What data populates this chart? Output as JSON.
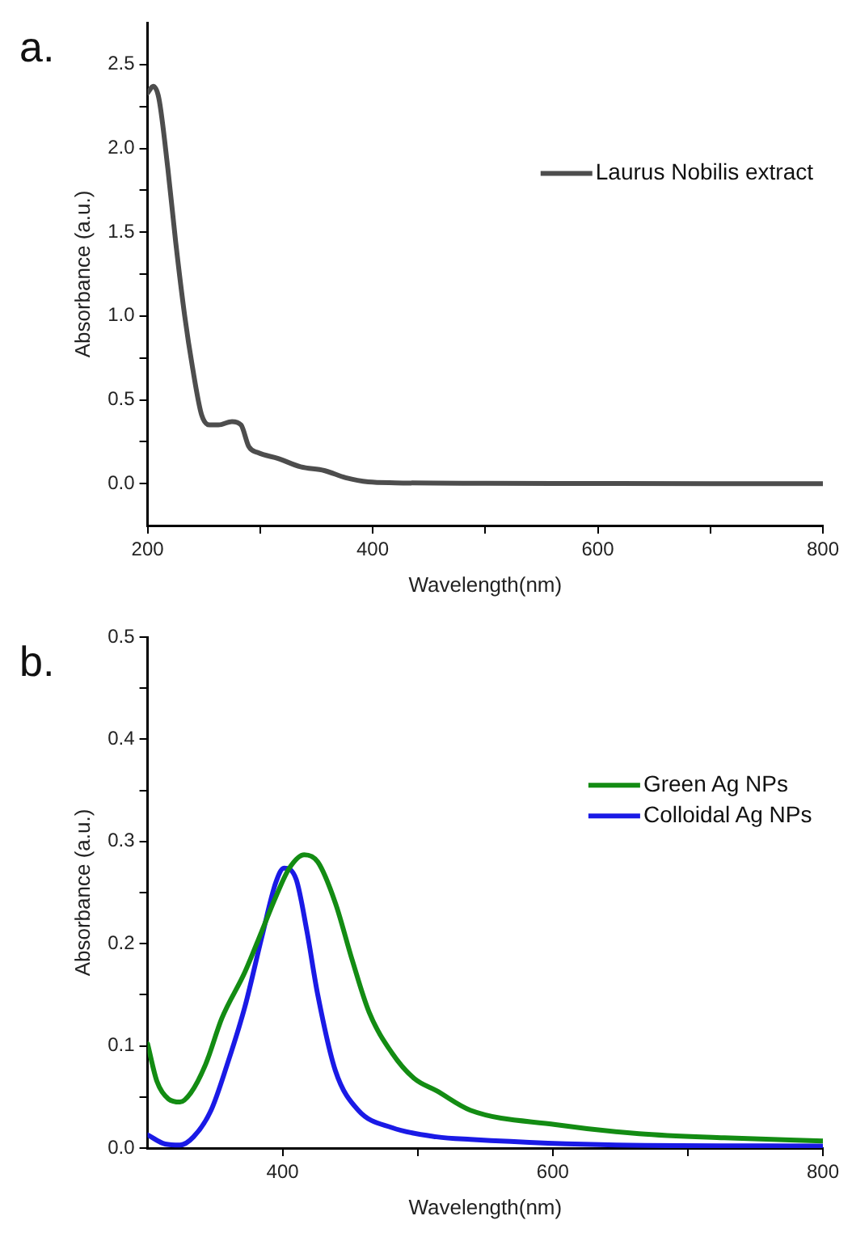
{
  "chart_data": [
    {
      "type": "line",
      "title": "a.",
      "xlabel": "Wavelength(nm)",
      "ylabel": "Absorbance (a.u.)",
      "xlim": [
        200,
        800
      ],
      "ylim": [
        -0.25,
        2.75
      ],
      "xticks": [
        200,
        {
          "value": 300,
          "label": null
        },
        400,
        {
          "value": 500,
          "label": null
        },
        600,
        {
          "value": 700,
          "label": null
        },
        800
      ],
      "yticks": [
        {
          "value": 0,
          "label": "0.0"
        },
        {
          "value": 0.25,
          "label": null
        },
        {
          "value": 0.5,
          "label": "0.5"
        },
        {
          "value": 0.75,
          "label": null
        },
        {
          "value": 1,
          "label": "1.0"
        },
        {
          "value": 1.25,
          "label": null
        },
        {
          "value": 1.5,
          "label": "1.5"
        },
        {
          "value": 1.75,
          "label": null
        },
        {
          "value": 2,
          "label": "2.0"
        },
        {
          "value": 2.25,
          "label": null
        },
        {
          "value": 2.5,
          "label": "2.5"
        }
      ],
      "grid": false,
      "legend": "top right",
      "marker": "none",
      "line_style": "solid",
      "series": [
        {
          "name": "Laurus Nobilis extract",
          "color": "#4d4d4d",
          "x": [
            200,
            205,
            210,
            218,
            225,
            233,
            240,
            248,
            255,
            263,
            275,
            283,
            290,
            298,
            316,
            336,
            357,
            376,
            396,
            420,
            500,
            600,
            700,
            800
          ],
          "values": [
            2.33,
            2.37,
            2.3,
            1.88,
            1.44,
            1.0,
            0.69,
            0.41,
            0.35,
            0.35,
            0.37,
            0.35,
            0.22,
            0.185,
            0.15,
            0.1,
            0.078,
            0.035,
            0.01,
            0.005,
            0.002,
            0.001,
            0.0,
            0.0
          ]
        }
      ]
    },
    {
      "type": "line",
      "title": "b.",
      "xlabel": "Wavelength(nm)",
      "ylabel": "Absorbance (a.u.)",
      "xlim": [
        300,
        800
      ],
      "ylim": [
        0,
        0.5
      ],
      "xticks": [
        400,
        {
          "value": 500,
          "label": null
        },
        600,
        {
          "value": 700,
          "label": null
        },
        800
      ],
      "yticks": [
        {
          "value": 0,
          "label": "0.0"
        },
        {
          "value": 0.05,
          "label": null
        },
        {
          "value": 0.1,
          "label": "0.1"
        },
        {
          "value": 0.15,
          "label": null
        },
        {
          "value": 0.2,
          "label": "0.2"
        },
        {
          "value": 0.25,
          "label": null
        },
        {
          "value": 0.3,
          "label": "0.3"
        },
        {
          "value": 0.35,
          "label": null
        },
        {
          "value": 0.4,
          "label": "0.4"
        },
        {
          "value": 0.45,
          "label": null
        },
        {
          "value": 0.5,
          "label": "0.5"
        }
      ],
      "grid": false,
      "legend": "right",
      "marker": "none",
      "line_style": "solid",
      "series": [
        {
          "name": "Green Ag NPs",
          "color": "#138c13",
          "x": [
            300,
            307,
            315.5,
            324,
            332,
            343,
            355,
            372,
            384.5,
            395,
            405,
            416,
            426,
            439,
            451.5,
            464,
            481,
            497.5,
            514,
            539,
            602,
            664,
            727,
            800
          ],
          "values": [
            0.102,
            0.065,
            0.048,
            0.045,
            0.054,
            0.082,
            0.127,
            0.172,
            0.212,
            0.246,
            0.274,
            0.287,
            0.28,
            0.24,
            0.184,
            0.133,
            0.093,
            0.068,
            0.056,
            0.037,
            0.023,
            0.014,
            0.01,
            0.007
          ]
        },
        {
          "name": "Colloidal Ag NPs",
          "color": "#1a1ae6",
          "x": [
            300,
            313,
            324,
            334,
            347,
            359,
            372,
            384.5,
            395,
            401,
            410,
            418,
            426,
            439,
            456,
            481,
            514,
            539,
            647,
            800
          ],
          "values": [
            0.013,
            0.004,
            0.003,
            0.011,
            0.037,
            0.082,
            0.138,
            0.206,
            0.26,
            0.274,
            0.263,
            0.212,
            0.15,
            0.076,
            0.037,
            0.02,
            0.011,
            0.0085,
            0.003,
            0.002
          ]
        }
      ]
    }
  ]
}
